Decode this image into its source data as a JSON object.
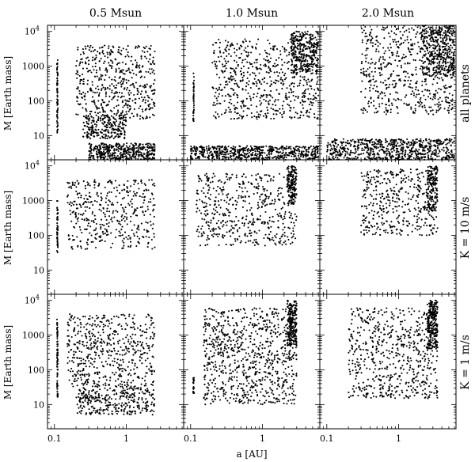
{
  "chart_data": {
    "type": "scatter",
    "layout": "3x3 grid of scatter panels",
    "column_titles": [
      "0.5 Msun",
      "1.0 Msun",
      "2.0 Msun"
    ],
    "row_titles": [
      "all planets",
      "K = 10 m/s",
      "K = 1 m/s"
    ],
    "xlabel": "a [AU]",
    "ylabel": "M [Earth mass]",
    "xscale": "log",
    "yscale": "log",
    "xlim": [
      0.08,
      6.3
    ],
    "ylim": [
      2,
      15000
    ],
    "x_ticks": [
      {
        "value": 0.1,
        "label": "0.1"
      },
      {
        "value": 1,
        "label": "1"
      }
    ],
    "y_ticks": [
      {
        "value": 10,
        "label": "10"
      },
      {
        "value": 100,
        "label": "100"
      },
      {
        "value": 1000,
        "label": "1000"
      },
      {
        "value": 10000,
        "label": "10",
        "sup": "4"
      }
    ],
    "grid": false,
    "legend": "none",
    "marker_color": "#000000",
    "panels": [
      {
        "col": 0,
        "row": 0,
        "star_mass": "0.5 Msun",
        "sample": "all planets",
        "x_range": [
          0.1,
          2.5
        ],
        "mass_range": [
          2,
          5000
        ],
        "clusters": [
          {
            "x": [
              0.2,
              2.5
            ],
            "y": [
              30,
              4000
            ],
            "n": 520
          },
          {
            "x": [
              0.25,
              1.0
            ],
            "y": [
              8,
              40
            ],
            "n": 240
          },
          {
            "x": [
              0.3,
              2.5
            ],
            "y": [
              2,
              6
            ],
            "n": 420
          }
        ],
        "inner_edge": {
          "x": 0.11,
          "y": [
            12,
            1500
          ],
          "n": 70
        }
      },
      {
        "col": 1,
        "row": 0,
        "star_mass": "1.0 Msun",
        "sample": "all planets",
        "x_range": [
          0.1,
          6
        ],
        "mass_range": [
          2,
          10000
        ],
        "clusters": [
          {
            "x": [
              0.2,
              6
            ],
            "y": [
              30,
              6000
            ],
            "n": 650
          },
          {
            "x": [
              2.5,
              6
            ],
            "y": [
              600,
              10000
            ],
            "n": 300
          },
          {
            "x": [
              0.1,
              6
            ],
            "y": [
              2,
              5
            ],
            "n": 620
          }
        ],
        "inner_edge": {
          "x": 0.11,
          "y": [
            20,
            800
          ],
          "n": 40
        }
      },
      {
        "col": 2,
        "row": 0,
        "star_mass": "2.0 Msun",
        "sample": "all planets",
        "x_range": [
          0.1,
          6
        ],
        "mass_range": [
          2,
          15000
        ],
        "clusters": [
          {
            "x": [
              0.3,
              6
            ],
            "y": [
              40,
              15000
            ],
            "n": 600
          },
          {
            "x": [
              2,
              6
            ],
            "y": [
              500,
              15000
            ],
            "n": 380
          },
          {
            "x": [
              0.1,
              6
            ],
            "y": [
              2,
              8
            ],
            "n": 700
          }
        ],
        "inner_edge": null
      },
      {
        "col": 0,
        "row": 1,
        "star_mass": "0.5 Msun",
        "sample": "K = 10 m/s",
        "x_range": [
          0.1,
          2.5
        ],
        "mass_range": [
          30,
          5000
        ],
        "clusters": [
          {
            "x": [
              0.15,
              2.5
            ],
            "y": [
              40,
              4000
            ],
            "n": 420
          }
        ],
        "inner_edge": {
          "x": 0.11,
          "y": [
            30,
            1000
          ],
          "n": 50
        }
      },
      {
        "col": 1,
        "row": 1,
        "star_mass": "1.0 Msun",
        "sample": "K = 10 m/s",
        "x_range": [
          0.1,
          3
        ],
        "mass_range": [
          40,
          10000
        ],
        "clusters": [
          {
            "x": [
              0.12,
              3
            ],
            "y": [
              50,
              6000
            ],
            "n": 520
          },
          {
            "x": [
              2.2,
              3
            ],
            "y": [
              800,
              10000
            ],
            "n": 160
          }
        ],
        "inner_edge": null
      },
      {
        "col": 2,
        "row": 1,
        "star_mass": "2.0 Msun",
        "sample": "K = 10 m/s",
        "x_range": [
          0.15,
          3.5
        ],
        "mass_range": [
          70,
          10000
        ],
        "clusters": [
          {
            "x": [
              0.3,
              3.5
            ],
            "y": [
              100,
              8000
            ],
            "n": 420
          },
          {
            "x": [
              2.5,
              3.5
            ],
            "y": [
              500,
              10000
            ],
            "n": 150
          }
        ],
        "inner_edge": null
      },
      {
        "col": 0,
        "row": 2,
        "star_mass": "0.5 Msun",
        "sample": "K = 1 m/s",
        "x_range": [
          0.1,
          2.5
        ],
        "mass_range": [
          4,
          5000
        ],
        "clusters": [
          {
            "x": [
              0.15,
              2.5
            ],
            "y": [
              30,
              4000
            ],
            "n": 560
          },
          {
            "x": [
              0.2,
              2.5
            ],
            "y": [
              5,
              30
            ],
            "n": 320
          }
        ],
        "inner_edge": {
          "x": 0.11,
          "y": [
            15,
            3000
          ],
          "n": 80
        }
      },
      {
        "col": 1,
        "row": 2,
        "star_mass": "1.0 Msun",
        "sample": "K = 1 m/s",
        "x_range": [
          0.1,
          3
        ],
        "mass_range": [
          6,
          10000
        ],
        "clusters": [
          {
            "x": [
              0.15,
              3
            ],
            "y": [
              10,
              6000
            ],
            "n": 820
          },
          {
            "x": [
              2.2,
              3
            ],
            "y": [
              500,
              10000
            ],
            "n": 220
          }
        ],
        "inner_edge": {
          "x": 0.11,
          "y": [
            20,
            60
          ],
          "n": 25
        }
      },
      {
        "col": 2,
        "row": 2,
        "star_mass": "2.0 Msun",
        "sample": "K = 1 m/s",
        "x_range": [
          0.15,
          3.5
        ],
        "mass_range": [
          8,
          10000
        ],
        "clusters": [
          {
            "x": [
              0.2,
              3.5
            ],
            "y": [
              15,
              6000
            ],
            "n": 620
          },
          {
            "x": [
              2.5,
              3.5
            ],
            "y": [
              400,
              10000
            ],
            "n": 260
          }
        ],
        "inner_edge": null
      }
    ]
  }
}
